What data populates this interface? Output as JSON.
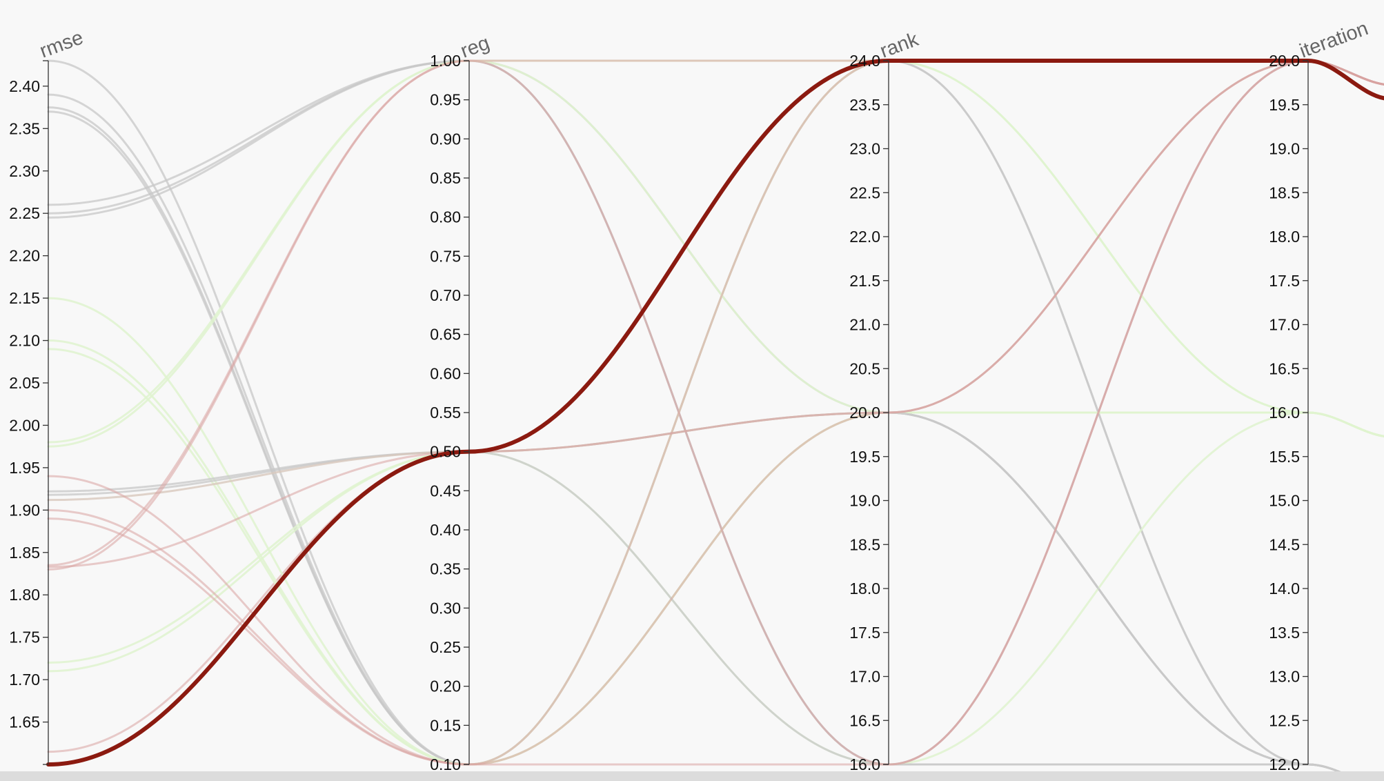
{
  "chart_data": {
    "type": "parallel_coordinates",
    "axes": [
      {
        "name": "rmse",
        "ticks": [
          "2.40",
          "2.35",
          "2.30",
          "2.25",
          "2.20",
          "2.15",
          "2.10",
          "2.05",
          "2.00",
          "1.95",
          "1.90",
          "1.85",
          "1.80",
          "1.75",
          "1.70",
          "1.65"
        ],
        "range": [
          1.6,
          2.43
        ]
      },
      {
        "name": "reg",
        "ticks": [
          "1.00",
          "0.95",
          "0.90",
          "0.85",
          "0.80",
          "0.75",
          "0.70",
          "0.65",
          "0.60",
          "0.55",
          "0.50",
          "0.45",
          "0.40",
          "0.35",
          "0.30",
          "0.25",
          "0.20",
          "0.15",
          "0.10"
        ],
        "range": [
          0.1,
          1.0
        ]
      },
      {
        "name": "rank",
        "ticks": [
          "24.0",
          "23.5",
          "23.0",
          "22.5",
          "22.0",
          "21.5",
          "21.0",
          "20.5",
          "20.0",
          "19.5",
          "19.0",
          "18.5",
          "18.0",
          "17.5",
          "17.0",
          "16.5",
          "16.0"
        ],
        "range": [
          16.0,
          24.0
        ]
      },
      {
        "name": "iteration",
        "ticks": [
          "20.0",
          "19.5",
          "19.0",
          "18.5",
          "18.0",
          "17.5",
          "17.0",
          "16.5",
          "16.0",
          "15.5",
          "15.0",
          "14.5",
          "14.0",
          "13.5",
          "13.0",
          "12.5",
          "12.0"
        ],
        "range": [
          12.0,
          20.0
        ]
      }
    ],
    "colors": {
      "best": "#8b1a10",
      "red": "#d9a3a0",
      "grey": "#c8c8c8",
      "green": "#dff3cf",
      "tan": "#d8c8bd"
    },
    "series": [
      {
        "values": [
          1.6,
          0.5,
          24.0,
          20.0
        ],
        "color": "best"
      },
      {
        "values": [
          1.615,
          0.5,
          24.0,
          20.0
        ],
        "color": "red"
      },
      {
        "values": [
          2.43,
          0.1,
          24.0,
          12.0
        ],
        "color": "grey"
      },
      {
        "values": [
          2.39,
          0.1,
          24.0,
          12.0
        ],
        "color": "grey"
      },
      {
        "values": [
          2.375,
          0.1,
          20.0,
          12.0
        ],
        "color": "grey"
      },
      {
        "values": [
          2.37,
          0.1,
          20.0,
          12.0
        ],
        "color": "grey"
      },
      {
        "values": [
          2.26,
          1.0,
          16.0,
          20.0
        ],
        "color": "grey"
      },
      {
        "values": [
          2.25,
          1.0,
          16.0,
          12.0
        ],
        "color": "grey"
      },
      {
        "values": [
          2.245,
          1.0,
          20.0,
          12.0
        ],
        "color": "grey"
      },
      {
        "values": [
          2.15,
          0.1,
          20.0,
          16.0
        ],
        "color": "green"
      },
      {
        "values": [
          2.1,
          0.1,
          24.0,
          16.0
        ],
        "color": "green"
      },
      {
        "values": [
          2.09,
          0.1,
          20.0,
          16.0
        ],
        "color": "green"
      },
      {
        "values": [
          1.98,
          1.0,
          24.0,
          16.0
        ],
        "color": "green"
      },
      {
        "values": [
          1.975,
          1.0,
          20.0,
          16.0
        ],
        "color": "green"
      },
      {
        "values": [
          1.72,
          0.5,
          16.0,
          16.0
        ],
        "color": "green"
      },
      {
        "values": [
          1.71,
          0.5,
          20.0,
          16.0
        ],
        "color": "green"
      },
      {
        "values": [
          1.922,
          0.5,
          20.0,
          12.0
        ],
        "color": "grey"
      },
      {
        "values": [
          1.918,
          0.5,
          16.0,
          12.0
        ],
        "color": "grey"
      },
      {
        "values": [
          1.912,
          0.5,
          20.0,
          20.0
        ],
        "color": "tan"
      },
      {
        "values": [
          1.94,
          0.1,
          24.0,
          20.0
        ],
        "color": "red"
      },
      {
        "values": [
          1.9,
          0.1,
          20.0,
          20.0
        ],
        "color": "red"
      },
      {
        "values": [
          1.89,
          0.1,
          16.0,
          20.0
        ],
        "color": "red"
      },
      {
        "values": [
          1.835,
          1.0,
          24.0,
          20.0
        ],
        "color": "red"
      },
      {
        "values": [
          1.833,
          0.5,
          20.0,
          20.0
        ],
        "color": "red"
      },
      {
        "values": [
          1.83,
          1.0,
          16.0,
          20.0
        ],
        "color": "red"
      }
    ]
  }
}
